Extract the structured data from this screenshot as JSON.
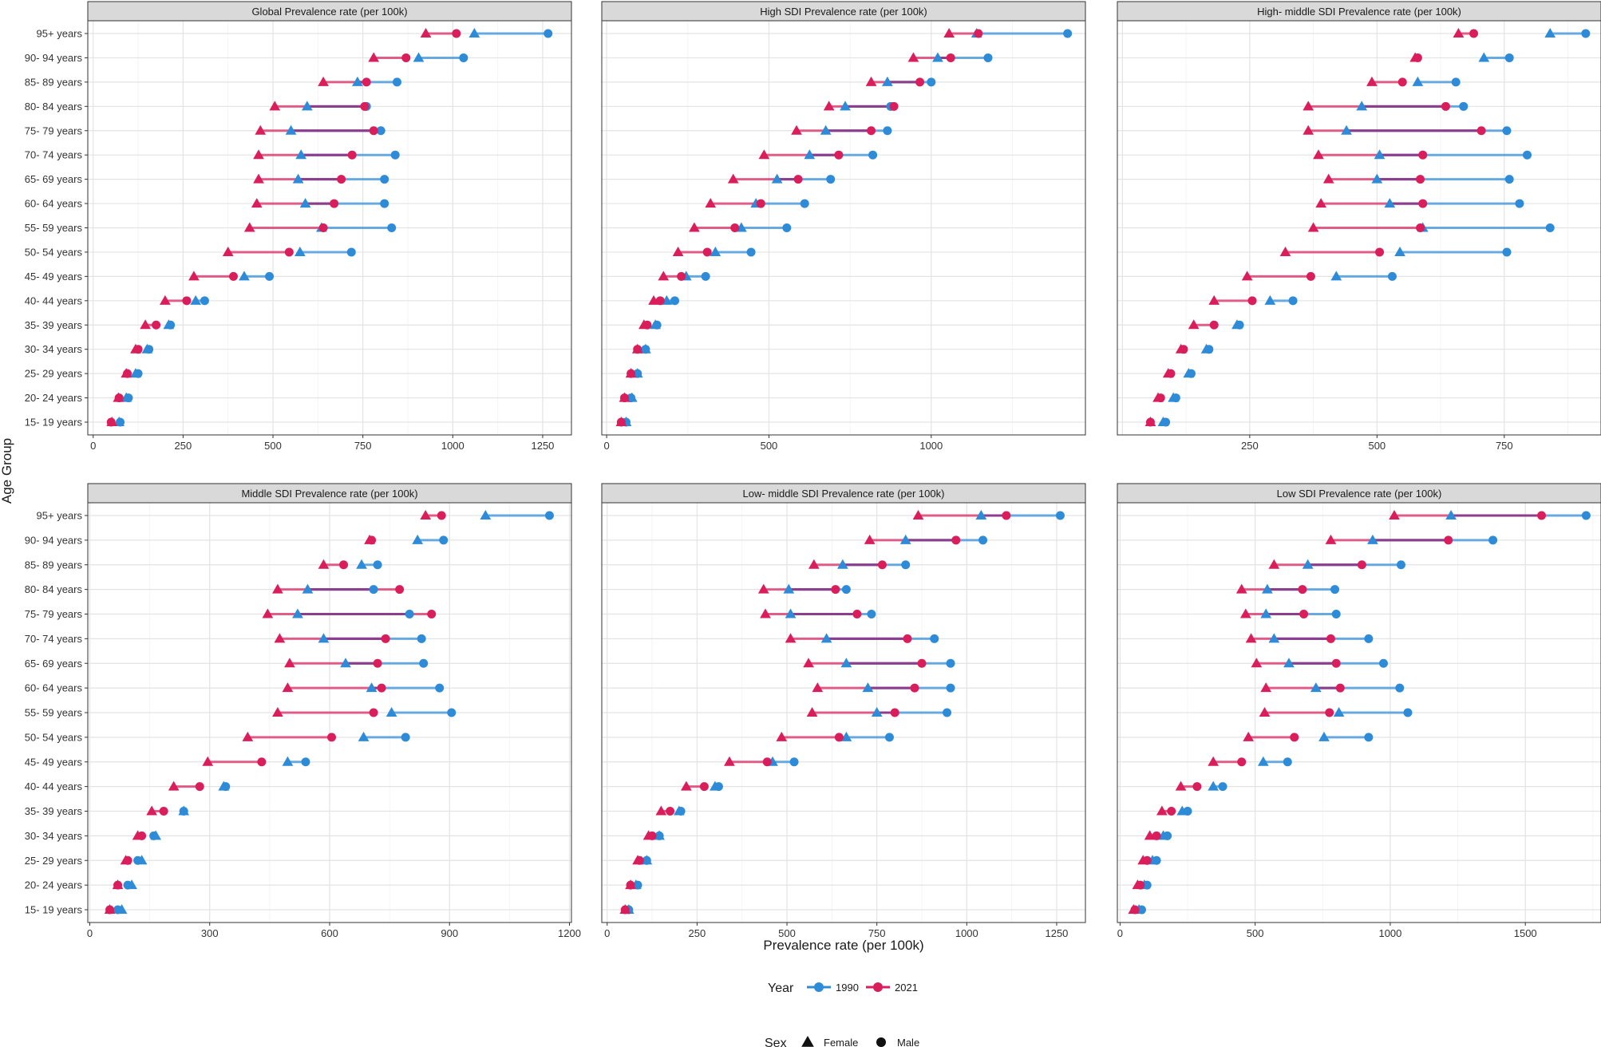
{
  "chart_data": {
    "type": "dumbbell",
    "xlabel": "Prevalence rate (per 100k)",
    "ylabel": "Age Group",
    "categories": [
      "95+ years",
      "90- 94 years",
      "85- 89 years",
      "80- 84 years",
      "75- 79 years",
      "70- 74 years",
      "65- 69 years",
      "60- 64 years",
      "55- 59 years",
      "50- 54 years",
      "45- 49 years",
      "40- 44 years",
      "35- 39 years",
      "30- 34 years",
      "25- 29 years",
      "20- 24 years",
      "15- 19 years"
    ],
    "legend_year": {
      "title": "Year",
      "items": [
        {
          "label": "1990",
          "color": "#2E8BD8"
        },
        {
          "label": "2021",
          "color": "#D91E5B"
        }
      ]
    },
    "legend_sex": {
      "title": "Sex",
      "items": [
        {
          "label": "Female",
          "shape": "triangle"
        },
        {
          "label": "Male",
          "shape": "circle"
        }
      ]
    },
    "panels": [
      {
        "title": "Global Prevalence rate (per 100k)",
        "xlim": [
          -15,
          1330
        ],
        "ticks": [
          0,
          250,
          500,
          750,
          1000,
          1250
        ],
        "f1990": [
          1060,
          905,
          735,
          595,
          550,
          578,
          570,
          590,
          635,
          575,
          420,
          285,
          210,
          150,
          118,
          92,
          72
        ],
        "m1990": [
          1265,
          1030,
          845,
          760,
          800,
          840,
          810,
          810,
          830,
          718,
          490,
          310,
          215,
          155,
          125,
          98,
          75
        ],
        "f2021": [
          925,
          780,
          640,
          505,
          465,
          460,
          460,
          455,
          435,
          375,
          280,
          200,
          145,
          118,
          92,
          70,
          52
        ],
        "m2021": [
          1010,
          870,
          760,
          755,
          780,
          720,
          690,
          670,
          640,
          545,
          390,
          260,
          175,
          125,
          95,
          72,
          50
        ]
      },
      {
        "title": "High SDI Prevalence rate (per 100k)",
        "xlim": [
          -15,
          1475
        ],
        "ticks": [
          0,
          500,
          1000
        ],
        "f1990": [
          1140,
          1020,
          865,
          735,
          675,
          625,
          525,
          460,
          415,
          335,
          245,
          185,
          150,
          120,
          95,
          78,
          60
        ],
        "m1990": [
          1420,
          1175,
          1000,
          875,
          865,
          820,
          690,
          610,
          555,
          445,
          305,
          210,
          155,
          120,
          95,
          75,
          60
        ],
        "f2021": [
          1055,
          945,
          815,
          685,
          585,
          485,
          390,
          320,
          270,
          220,
          175,
          145,
          115,
          95,
          75,
          55,
          45
        ],
        "m2021": [
          1145,
          1060,
          965,
          885,
          815,
          715,
          590,
          475,
          395,
          310,
          230,
          165,
          125,
          95,
          75,
          55,
          45
        ]
      },
      {
        "title": "High- middle SDI Prevalence rate (per 100k)",
        "xlim": [
          -10,
          940
        ],
        "ticks": [
          250,
          500,
          750
        ],
        "f1990": [
          840,
          710,
          580,
          470,
          440,
          505,
          500,
          525,
          590,
          545,
          420,
          290,
          225,
          165,
          130,
          100,
          80
        ],
        "m1990": [
          910,
          760,
          655,
          670,
          755,
          795,
          760,
          780,
          840,
          755,
          530,
          335,
          230,
          170,
          135,
          105,
          85
        ],
        "f2021": [
          660,
          575,
          490,
          365,
          365,
          385,
          405,
          390,
          375,
          320,
          245,
          180,
          140,
          115,
          90,
          70,
          55
        ],
        "m2021": [
          690,
          580,
          550,
          635,
          705,
          590,
          585,
          590,
          585,
          505,
          370,
          255,
          180,
          120,
          95,
          75,
          55
        ]
      },
      {
        "title": "Middle SDI Prevalence rate (per 100k)",
        "xlim": [
          -5,
          1205
        ],
        "ticks": [
          0,
          300,
          600,
          900,
          1200
        ],
        "f1990": [
          990,
          820,
          680,
          545,
          520,
          585,
          640,
          705,
          755,
          685,
          495,
          335,
          235,
          165,
          130,
          105,
          80
        ],
        "m1990": [
          1150,
          885,
          720,
          710,
          800,
          830,
          835,
          875,
          905,
          790,
          540,
          340,
          235,
          160,
          120,
          95,
          70
        ],
        "f2021": [
          840,
          700,
          585,
          470,
          445,
          475,
          500,
          495,
          470,
          395,
          295,
          210,
          155,
          120,
          90,
          70,
          50
        ],
        "m2021": [
          880,
          705,
          635,
          775,
          855,
          740,
          720,
          730,
          710,
          605,
          430,
          275,
          185,
          130,
          95,
          70,
          50
        ]
      },
      {
        "title": "Low- middle SDI Prevalence rate (per 100k)",
        "xlim": [
          -15,
          1330
        ],
        "ticks": [
          0,
          250,
          500,
          750,
          1000,
          1250
        ],
        "f1990": [
          1040,
          830,
          655,
          505,
          510,
          610,
          665,
          725,
          750,
          665,
          460,
          300,
          200,
          145,
          110,
          80,
          60
        ],
        "m1990": [
          1260,
          1045,
          830,
          665,
          735,
          910,
          955,
          955,
          945,
          785,
          520,
          310,
          205,
          145,
          110,
          85,
          60
        ],
        "f2021": [
          865,
          730,
          575,
          435,
          440,
          510,
          560,
          585,
          570,
          485,
          340,
          220,
          150,
          115,
          85,
          65,
          50
        ],
        "m2021": [
          1110,
          970,
          765,
          635,
          695,
          835,
          875,
          855,
          800,
          645,
          445,
          270,
          175,
          125,
          90,
          65,
          50
        ]
      },
      {
        "title": "Low SDI Prevalence rate (per 100k)",
        "xlim": [
          -10,
          1780
        ],
        "ticks": [
          0,
          500,
          1000,
          1500
        ],
        "f1990": [
          1225,
          935,
          695,
          545,
          540,
          570,
          625,
          725,
          810,
          755,
          530,
          345,
          230,
          160,
          120,
          90,
          70
        ],
        "m1990": [
          1725,
          1380,
          1040,
          795,
          800,
          920,
          975,
          1035,
          1065,
          920,
          620,
          380,
          250,
          175,
          135,
          100,
          80
        ],
        "f2021": [
          1015,
          780,
          570,
          450,
          465,
          485,
          505,
          540,
          535,
          475,
          345,
          225,
          155,
          110,
          85,
          65,
          50
        ],
        "m2021": [
          1560,
          1215,
          895,
          675,
          680,
          780,
          800,
          815,
          775,
          645,
          450,
          285,
          190,
          135,
          100,
          75,
          55
        ]
      }
    ]
  }
}
